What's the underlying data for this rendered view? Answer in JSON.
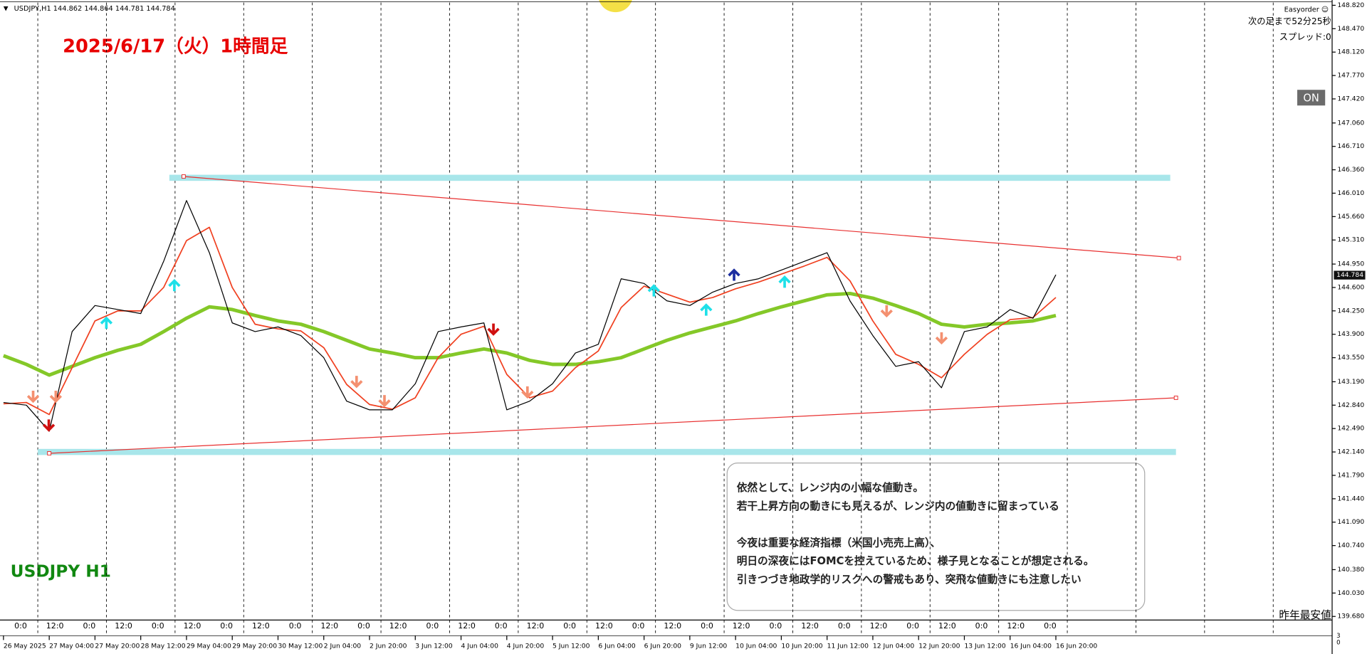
{
  "header": {
    "symbol_info": "USDJPY,H1  144.862 144.864 144.781 144.784"
  },
  "panel": {
    "name": "Easyorder ☺",
    "countdown": "次の足まで52分25秒",
    "spread": "スプレッド:0",
    "button": "ON"
  },
  "chart_data": {
    "type": "line",
    "title": "2025/6/17（火）1時間足",
    "subtitle": "USDJPY H1",
    "x": [
      0,
      8,
      16,
      24,
      32,
      40,
      48,
      56,
      64,
      72,
      80,
      88,
      96,
      104,
      112,
      120,
      128,
      136,
      144,
      152,
      160,
      168,
      176,
      184,
      192,
      200,
      208,
      216,
      224,
      232,
      240,
      248,
      256,
      264,
      272,
      280,
      288,
      296,
      304,
      312,
      320,
      328,
      336,
      344,
      352,
      360,
      368
    ],
    "series": [
      {
        "name": "USDJPY",
        "color": "#000000",
        "values": [
          142.88,
          142.84,
          142.45,
          143.94,
          144.33,
          144.27,
          144.21,
          144.99,
          145.9,
          145.12,
          144.07,
          143.94,
          144.01,
          143.88,
          143.55,
          142.9,
          142.77,
          142.77,
          143.16,
          143.94,
          144.01,
          144.07,
          142.77,
          142.9,
          143.16,
          143.62,
          143.75,
          144.73,
          144.66,
          144.4,
          144.33,
          144.53,
          144.66,
          144.73,
          144.86,
          144.99,
          145.12,
          144.4,
          143.88,
          143.42,
          143.49,
          143.1,
          143.94,
          144.01,
          144.27,
          144.14,
          144.79
        ]
      },
      {
        "color": "#f04020",
        "values": [
          142.86,
          142.88,
          142.7,
          143.4,
          144.1,
          144.25,
          144.25,
          144.6,
          145.3,
          145.5,
          144.6,
          144.05,
          143.98,
          143.95,
          143.7,
          143.15,
          142.85,
          142.78,
          142.95,
          143.55,
          143.9,
          144.02,
          143.3,
          142.95,
          143.05,
          143.4,
          143.65,
          144.3,
          144.62,
          144.5,
          144.38,
          144.45,
          144.58,
          144.68,
          144.8,
          144.92,
          145.05,
          144.7,
          144.1,
          143.6,
          143.45,
          143.25,
          143.6,
          143.9,
          144.12,
          144.15,
          144.45
        ]
      },
      {
        "color": "#84c828",
        "values": [
          143.58,
          143.45,
          143.29,
          143.42,
          143.55,
          143.66,
          143.75,
          143.94,
          144.14,
          144.31,
          144.27,
          144.18,
          144.1,
          144.05,
          143.94,
          143.81,
          143.68,
          143.62,
          143.55,
          143.55,
          143.62,
          143.68,
          143.62,
          143.51,
          143.45,
          143.45,
          143.49,
          143.55,
          143.68,
          143.81,
          143.92,
          144.01,
          144.1,
          144.21,
          144.31,
          144.4,
          144.49,
          144.51,
          144.44,
          144.33,
          144.21,
          144.05,
          144.01,
          144.05,
          144.07,
          144.1,
          144.18
        ]
      }
    ],
    "xlim": [
      -0.3,
      464.3
    ],
    "ylim": [
      139.64,
      148.86
    ],
    "yticks": [
      {
        "value": 148.82,
        "label": "148.820"
      },
      {
        "value": 148.47,
        "label": "148.470"
      },
      {
        "value": 148.12,
        "label": "148.120"
      },
      {
        "value": 147.77,
        "label": "147.770"
      },
      {
        "value": 147.42,
        "label": "147.420"
      },
      {
        "value": 147.06,
        "label": "147.060"
      },
      {
        "value": 146.71,
        "label": "146.710"
      },
      {
        "value": 146.36,
        "label": "146.360"
      },
      {
        "value": 146.01,
        "label": "146.010"
      },
      {
        "value": 145.66,
        "label": "145.660"
      },
      {
        "value": 145.31,
        "label": "145.310"
      },
      {
        "value": 144.95,
        "label": "144.950"
      },
      {
        "value": 144.6,
        "label": "144.600"
      },
      {
        "value": 144.25,
        "label": "144.250"
      },
      {
        "value": 143.9,
        "label": "143.900"
      },
      {
        "value": 143.55,
        "label": "143.550"
      },
      {
        "value": 143.19,
        "label": "143.190"
      },
      {
        "value": 142.84,
        "label": "142.840"
      },
      {
        "value": 142.49,
        "label": "142.490"
      },
      {
        "value": 142.14,
        "label": "142.140"
      },
      {
        "value": 141.79,
        "label": "141.790"
      },
      {
        "value": 141.44,
        "label": "141.440"
      },
      {
        "value": 141.09,
        "label": "141.090"
      },
      {
        "value": 140.74,
        "label": "140.740"
      },
      {
        "value": 140.38,
        "label": "140.380"
      },
      {
        "value": 140.03,
        "label": "140.030"
      },
      {
        "value": 139.68,
        "label": "139.680"
      }
    ],
    "xticks": [
      {
        "value": 0,
        "label": "26 May 2025"
      },
      {
        "value": 16,
        "label": "27 May 04:00"
      },
      {
        "value": 32,
        "label": "27 May 20:00"
      },
      {
        "value": 48,
        "label": "28 May 12:00"
      },
      {
        "value": 64,
        "label": "29 May 04:00"
      },
      {
        "value": 80,
        "label": "29 May 20:00"
      },
      {
        "value": 96,
        "label": "30 May 12:00"
      },
      {
        "value": 112,
        "label": "2 Jun 04:00"
      },
      {
        "value": 128,
        "label": "2 Jun 20:00"
      },
      {
        "value": 144,
        "label": "3 Jun 12:00"
      },
      {
        "value": 160,
        "label": "4 Jun 04:00"
      },
      {
        "value": 176,
        "label": "4 Jun 20:00"
      },
      {
        "value": 192,
        "label": "5 Jun 12:00"
      },
      {
        "value": 208,
        "label": "6 Jun 04:00"
      },
      {
        "value": 224,
        "label": "6 Jun 20:00"
      },
      {
        "value": 240,
        "label": "9 Jun 12:00"
      },
      {
        "value": 256,
        "label": "10 Jun 04:00"
      },
      {
        "value": 272,
        "label": "10 Jun 20:00"
      },
      {
        "value": 288,
        "label": "11 Jun 12:00"
      },
      {
        "value": 304,
        "label": "12 Jun 04:00"
      },
      {
        "value": 320,
        "label": "12 Jun 20:00"
      },
      {
        "value": 336,
        "label": "13 Jun 12:00"
      },
      {
        "value": 352,
        "label": "16 Jun 04:00"
      },
      {
        "value": 368,
        "label": "16 Jun 20:00"
      }
    ],
    "time_markers": [
      {
        "value": 6,
        "label": "0:0"
      },
      {
        "value": 18,
        "label": "12:0"
      },
      {
        "value": 30,
        "label": "0:0"
      },
      {
        "value": 42,
        "label": "12:0"
      },
      {
        "value": 54,
        "label": "0:0"
      },
      {
        "value": 66,
        "label": "12:0"
      },
      {
        "value": 78,
        "label": "0:0"
      },
      {
        "value": 90,
        "label": "12:0"
      },
      {
        "value": 102,
        "label": "0:0"
      },
      {
        "value": 114,
        "label": "12:0"
      },
      {
        "value": 126,
        "label": "0:0"
      },
      {
        "value": 138,
        "label": "12:0"
      },
      {
        "value": 150,
        "label": "0:0"
      },
      {
        "value": 162,
        "label": "12:0"
      },
      {
        "value": 174,
        "label": "0:0"
      },
      {
        "value": 186,
        "label": "12:0"
      },
      {
        "value": 198,
        "label": "0:0"
      },
      {
        "value": 210,
        "label": "12:0"
      },
      {
        "value": 222,
        "label": "0:0"
      },
      {
        "value": 234,
        "label": "12:0"
      },
      {
        "value": 246,
        "label": "0:0"
      },
      {
        "value": 258,
        "label": "12:0"
      },
      {
        "value": 270,
        "label": "0:0"
      },
      {
        "value": 282,
        "label": "12:0"
      },
      {
        "value": 294,
        "label": "0:0"
      },
      {
        "value": 306,
        "label": "12:0"
      },
      {
        "value": 318,
        "label": "0:0"
      },
      {
        "value": 330,
        "label": "12:0"
      },
      {
        "value": 342,
        "label": "0:0"
      },
      {
        "value": 354,
        "label": "12:0"
      },
      {
        "value": 366,
        "label": "0:0"
      }
    ],
    "lines": [
      {
        "x": [
          63,
          411
        ],
        "y": [
          146.26,
          145.04
        ],
        "color": "#e83030"
      },
      {
        "x": [
          16,
          410
        ],
        "y": [
          142.12,
          142.95
        ],
        "color": "#e83030"
      }
    ],
    "levels": [
      {
        "value": 146.24,
        "x": [
          58,
          408
        ],
        "color": "#a8e6ea"
      },
      {
        "value": 142.14,
        "x": [
          12,
          410
        ],
        "color": "#a8e6ea"
      }
    ],
    "current_price": 144.784,
    "level_label": "昨年最安値",
    "subwindow_ticks": [
      3,
      0
    ],
    "annotation": {
      "paragraphs": [
        [
          "依然として、レンジ内の小幅な値動き。",
          "若干上昇方向の動きにも見えるが、レンジ内の値動きに留まっている"
        ],
        [
          "今夜は重要な経済指標（米国小売売上高）、",
          "明日の深夜にはFOMCを控えているため、様子見となることが想定される。",
          "引きつづき地政学的リスクへの警戒もあり、突飛な値動きにも注意したい"
        ]
      ]
    }
  }
}
